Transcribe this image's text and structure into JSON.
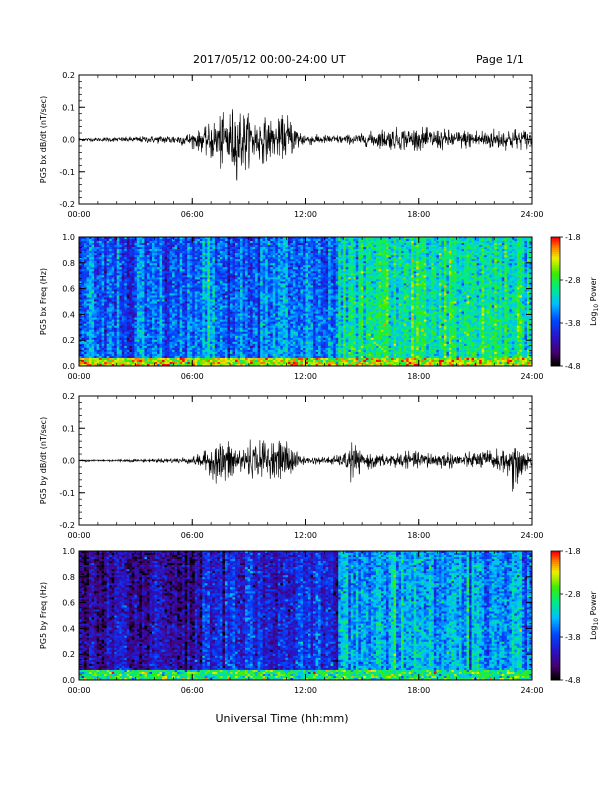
{
  "header": {
    "title": "2017/05/12  00:00-24:00 UT",
    "page": "Page 1/1"
  },
  "footer": {
    "xlabel": "Universal Time (hh:mm)"
  },
  "chart_data": [
    {
      "type": "line",
      "ylabel": "PG5 bx dB/dt (nT/sec)",
      "xlabel": "",
      "x_ticks": [
        "00:00",
        "06:00",
        "12:00",
        "18:00",
        "24:00"
      ],
      "y_ticks": [
        "0.2",
        "0.1",
        "0.0",
        "-0.1",
        "-0.2"
      ],
      "ylim": [
        -0.2,
        0.2
      ],
      "xlim_hours": [
        0,
        24
      ],
      "envelope": {
        "hours": [
          0,
          2,
          4,
          5.5,
          6.5,
          7.3,
          8,
          8.5,
          9,
          9.5,
          10,
          10.5,
          11,
          11.5,
          12,
          13,
          14,
          15,
          16,
          17,
          18,
          19,
          20,
          21,
          22,
          23,
          24
        ],
        "max": [
          0.005,
          0.008,
          0.012,
          0.018,
          0.03,
          0.07,
          0.1,
          0.11,
          0.08,
          0.07,
          0.07,
          0.06,
          0.09,
          0.05,
          0.02,
          0.015,
          0.015,
          0.02,
          0.035,
          0.04,
          0.04,
          0.035,
          0.03,
          0.035,
          0.035,
          0.04,
          0.03
        ],
        "min": [
          -0.005,
          -0.008,
          -0.012,
          -0.02,
          -0.04,
          -0.09,
          -0.12,
          -0.13,
          -0.09,
          -0.08,
          -0.07,
          -0.06,
          -0.06,
          -0.04,
          -0.02,
          -0.015,
          -0.015,
          -0.02,
          -0.03,
          -0.035,
          -0.035,
          -0.035,
          -0.03,
          -0.03,
          -0.035,
          -0.035,
          -0.03
        ]
      }
    },
    {
      "type": "heatmap",
      "ylabel": "PG5 bx Freq (Hz)",
      "xlabel": "",
      "x_ticks": [
        "00:00",
        "06:00",
        "12:00",
        "18:00",
        "24:00"
      ],
      "y_ticks": [
        "1.0",
        "0.8",
        "0.6",
        "0.4",
        "0.2",
        "0.0"
      ],
      "ylim": [
        0,
        1.0
      ],
      "xlim_hours": [
        0,
        24
      ],
      "colorbar": {
        "label": "Log",
        "label_sub": "10",
        "label_rest": " Power",
        "ticks": [
          "-1.8",
          "-2.8",
          "-3.8",
          "-4.8"
        ],
        "range": [
          -4.8,
          -1.8
        ]
      },
      "regions": [
        {
          "hours": [
            0,
            6.6
          ],
          "level": -3.65
        },
        {
          "hours": [
            6.6,
            6.9
          ],
          "level": -3.2
        },
        {
          "hours": [
            6.9,
            13.8
          ],
          "level": -3.55
        },
        {
          "hours": [
            13.8,
            24
          ],
          "level": -2.95
        }
      ],
      "lowfreq_enhancement": {
        "freq_max": 0.06,
        "level": -2.4
      }
    },
    {
      "type": "line",
      "ylabel": "PG5 by dB/dt (nT/sec)",
      "xlabel": "",
      "x_ticks": [
        "00:00",
        "06:00",
        "12:00",
        "18:00",
        "24:00"
      ],
      "y_ticks": [
        "0.2",
        "0.1",
        "0.0",
        "-0.1",
        "-0.2"
      ],
      "ylim": [
        -0.2,
        0.2
      ],
      "xlim_hours": [
        0,
        24
      ],
      "envelope": {
        "hours": [
          0,
          2,
          4,
          6,
          7,
          7.5,
          8,
          8.5,
          9,
          9.5,
          10,
          10.5,
          11,
          11.5,
          12,
          13,
          14,
          14.5,
          15,
          16,
          17,
          18,
          19,
          20,
          21,
          22,
          22.5,
          23,
          24
        ],
        "max": [
          0.003,
          0.004,
          0.006,
          0.012,
          0.04,
          0.065,
          0.06,
          0.045,
          0.07,
          0.06,
          0.08,
          0.06,
          0.08,
          0.03,
          0.012,
          0.012,
          0.02,
          0.065,
          0.02,
          0.02,
          0.03,
          0.03,
          0.03,
          0.025,
          0.03,
          0.04,
          0.03,
          0.04,
          0.02
        ],
        "min": [
          -0.003,
          -0.004,
          -0.006,
          -0.012,
          -0.05,
          -0.1,
          -0.08,
          -0.05,
          -0.06,
          -0.05,
          -0.06,
          -0.05,
          -0.07,
          -0.03,
          -0.012,
          -0.012,
          -0.02,
          -0.08,
          -0.03,
          -0.025,
          -0.025,
          -0.025,
          -0.025,
          -0.025,
          -0.025,
          -0.03,
          -0.04,
          -0.1,
          -0.02
        ]
      }
    },
    {
      "type": "heatmap",
      "ylabel": "PG5 by Freq (Hz)",
      "xlabel": "",
      "x_ticks": [
        "00:00",
        "06:00",
        "12:00",
        "18:00",
        "24:00"
      ],
      "y_ticks": [
        "1.0",
        "0.8",
        "0.6",
        "0.4",
        "0.2",
        "0.0"
      ],
      "ylim": [
        0,
        1.0
      ],
      "xlim_hours": [
        0,
        24
      ],
      "colorbar": {
        "label": "Log",
        "label_sub": "10",
        "label_rest": " Power",
        "ticks": [
          "-1.8",
          "-2.8",
          "-3.8",
          "-4.8"
        ],
        "range": [
          -4.8,
          -1.8
        ]
      },
      "regions": [
        {
          "hours": [
            0,
            6.6
          ],
          "level": -4.25
        },
        {
          "hours": [
            6.6,
            6.9
          ],
          "level": -3.7
        },
        {
          "hours": [
            6.9,
            13.8
          ],
          "level": -3.95
        },
        {
          "hours": [
            13.8,
            24
          ],
          "level": -3.35
        }
      ],
      "lowfreq_enhancement": {
        "freq_max": 0.08,
        "level": -2.9
      }
    }
  ]
}
